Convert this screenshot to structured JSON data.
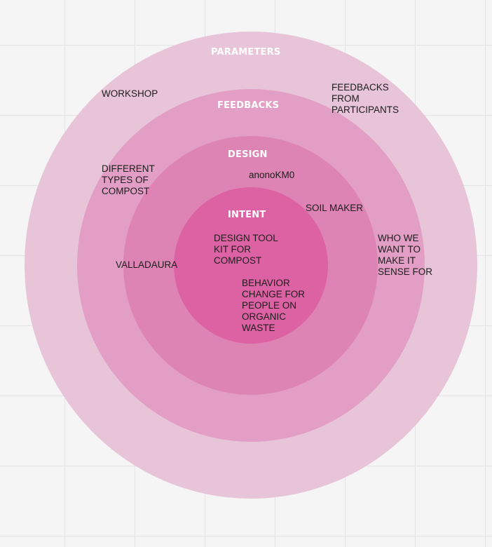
{
  "rings": {
    "parameters": {
      "label": "PARAMETERS",
      "color": "#e8c4d8"
    },
    "feedbacks": {
      "label": "FEEDBACKS",
      "color": "#e29ec4"
    },
    "design": {
      "label": "DESIGN",
      "color": "#de84b5"
    },
    "intent": {
      "label": "INTENT",
      "color": "#dc62a4"
    }
  },
  "notes": {
    "workshop": "WORKSHOP",
    "feedbacks_participants": "FEEDBACKS\nFROM\nPARTICIPANTS",
    "types_of_compost": "DIFFERENT\nTYPES OF\nCOMPOST",
    "anonokm0": "anonoKM0",
    "soil_maker": "SOIL MAKER",
    "who_we_want": "WHO WE\nWANT TO\nMAKE IT\nSENSE FOR",
    "valladaura": "VALLADAURA",
    "design_tool_kit": "DESIGN TOOL\nKIT FOR\nCOMPOST",
    "behavior_change": "BEHAVIOR\nCHANGE FOR\nPEOPLE ON\nORGANIC\nWASTE"
  }
}
